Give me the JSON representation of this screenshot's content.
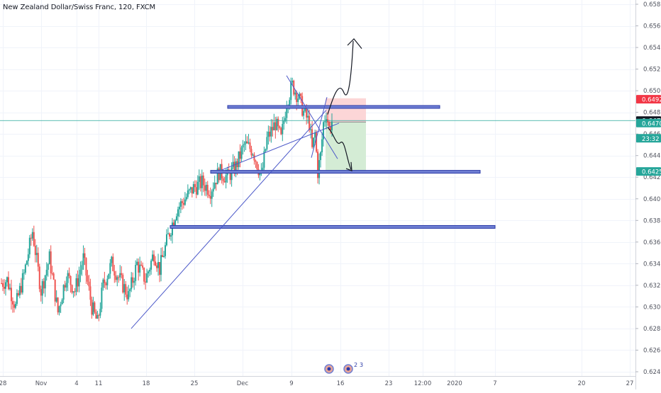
{
  "chart_data": {
    "type": "candlestick",
    "title": "New Zealand Dollar/Swiss Franc, 120, FXCM",
    "symbol": "NZDCHF",
    "timeframe": "120",
    "source": "FXCM",
    "ylim": [
      0.624,
      0.658
    ],
    "y_ticks": [
      "0.65800",
      "0.65600",
      "0.65400",
      "0.65200",
      "0.65000",
      "0.64800",
      "0.64600",
      "0.64400",
      "0.64200",
      "0.64000",
      "0.63800",
      "0.63600",
      "0.63400",
      "0.63200",
      "0.63000",
      "0.62800",
      "0.62600",
      "0.62400"
    ],
    "x_ticks": [
      "28",
      "Nov",
      "4",
      "11",
      "18",
      "25",
      "Dec",
      "9",
      "16",
      "23",
      "12:00",
      "2020",
      "7",
      "20",
      "27"
    ],
    "price_labels": [
      {
        "text": "0.64921",
        "value": 0.64921,
        "color": "#f23645"
      },
      {
        "text": "0.64724",
        "value": 0.64724,
        "color": "#131722"
      },
      {
        "text": "0.64701",
        "value": 0.64701,
        "color": "#26a69a"
      },
      {
        "text": "23:32",
        "value": 0.6456,
        "color": "#26a69a"
      },
      {
        "text": "0.64253",
        "value": 0.64253,
        "color": "#26a69a"
      }
    ],
    "current_price": 0.64724,
    "horizontal_levels": [
      0.6485,
      0.6425,
      0.6374
    ],
    "position": {
      "entry": 0.6471,
      "stop": 0.6493,
      "target": 0.6426
    },
    "event_badges": [
      "2",
      "3"
    ],
    "close_path": [
      {
        "d": 0,
        "c": 0.6322
      },
      {
        "d": 2,
        "c": 0.6325
      },
      {
        "d": 5,
        "c": 0.63
      },
      {
        "d": 8,
        "c": 0.633
      },
      {
        "d": 11,
        "c": 0.637
      },
      {
        "d": 14,
        "c": 0.6315
      },
      {
        "d": 17,
        "c": 0.6345
      },
      {
        "d": 20,
        "c": 0.6295
      },
      {
        "d": 23,
        "c": 0.633
      },
      {
        "d": 26,
        "c": 0.6315
      },
      {
        "d": 29,
        "c": 0.6345
      },
      {
        "d": 32,
        "c": 0.63
      },
      {
        "d": 34,
        "c": 0.6285
      },
      {
        "d": 36,
        "c": 0.632
      },
      {
        "d": 39,
        "c": 0.634
      },
      {
        "d": 42,
        "c": 0.6325
      },
      {
        "d": 45,
        "c": 0.631
      },
      {
        "d": 48,
        "c": 0.634
      },
      {
        "d": 51,
        "c": 0.6325
      },
      {
        "d": 54,
        "c": 0.635
      },
      {
        "d": 56,
        "c": 0.6335
      },
      {
        "d": 59,
        "c": 0.6365
      },
      {
        "d": 62,
        "c": 0.639
      },
      {
        "d": 65,
        "c": 0.64
      },
      {
        "d": 68,
        "c": 0.641
      },
      {
        "d": 71,
        "c": 0.6415
      },
      {
        "d": 74,
        "c": 0.6408
      },
      {
        "d": 77,
        "c": 0.6425
      },
      {
        "d": 80,
        "c": 0.642
      },
      {
        "d": 83,
        "c": 0.643
      },
      {
        "d": 86,
        "c": 0.645
      },
      {
        "d": 89,
        "c": 0.6445
      },
      {
        "d": 92,
        "c": 0.642
      },
      {
        "d": 94,
        "c": 0.6455
      },
      {
        "d": 97,
        "c": 0.647
      },
      {
        "d": 99,
        "c": 0.6455
      },
      {
        "d": 101,
        "c": 0.649
      },
      {
        "d": 103,
        "c": 0.6505
      },
      {
        "d": 105,
        "c": 0.6495
      },
      {
        "d": 107,
        "c": 0.648
      },
      {
        "d": 109,
        "c": 0.647
      },
      {
        "d": 110,
        "c": 0.6445
      },
      {
        "d": 111,
        "c": 0.646
      },
      {
        "d": 112,
        "c": 0.6425
      },
      {
        "d": 113,
        "c": 0.644
      },
      {
        "d": 114,
        "c": 0.647
      },
      {
        "d": 115,
        "c": 0.648
      },
      {
        "d": 116,
        "c": 0.6465
      },
      {
        "d": 117,
        "c": 0.6472
      }
    ]
  },
  "colors": {
    "up": "#26a69a",
    "down": "#ef5350",
    "level_fill": "#6f7fd3",
    "level_stroke": "#2b3aa8",
    "trendline": "#4a57c8",
    "current_line": "#26a69a",
    "stop_zone": "#fcd6d7",
    "target_zone": "#d4ecd5"
  }
}
